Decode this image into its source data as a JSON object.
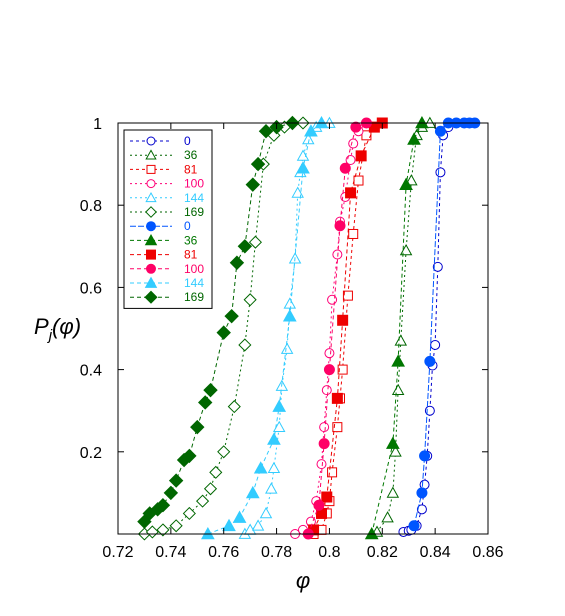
{
  "chart_data": {
    "type": "scatter",
    "title": "",
    "xlabel": "φ",
    "ylabel": {
      "main": "P",
      "sub": "j",
      "rest": "(φ)"
    },
    "xlim": [
      0.72,
      0.86
    ],
    "ylim": [
      0,
      1
    ],
    "xticks": [
      "0.72",
      "0.74",
      "0.76",
      "0.78",
      "0.8",
      "0.82",
      "0.84",
      "0.86"
    ],
    "yticks": [
      {
        "v": 0.2,
        "label": "0.2"
      },
      {
        "v": 0.4,
        "label": "0.4"
      },
      {
        "v": 0.6,
        "label": "0.6"
      },
      {
        "v": 0.8,
        "label": "0.8"
      },
      {
        "v": 1.0,
        "label": "1"
      }
    ],
    "grid": false,
    "legend_position": "top-left",
    "series": [
      {
        "name": "0",
        "color": "#0000cc",
        "marker": "circle",
        "filled": false,
        "dash": "3,3",
        "points": [
          [
            0.828,
            0.005
          ],
          [
            0.83,
            0.008
          ],
          [
            0.831,
            0.01
          ],
          [
            0.833,
            0.02
          ],
          [
            0.835,
            0.06
          ],
          [
            0.836,
            0.12
          ],
          [
            0.837,
            0.19
          ],
          [
            0.838,
            0.3
          ],
          [
            0.839,
            0.41
          ],
          [
            0.84,
            0.46
          ],
          [
            0.841,
            0.65
          ],
          [
            0.842,
            0.88
          ],
          [
            0.843,
            0.97
          ],
          [
            0.845,
            0.99
          ],
          [
            0.848,
            1.0
          ]
        ]
      },
      {
        "name": "36",
        "color": "#006600",
        "marker": "triangle",
        "filled": false,
        "dash": "2,3",
        "points": [
          [
            0.816,
            0.0
          ],
          [
            0.818,
            0.005
          ],
          [
            0.822,
            0.04
          ],
          [
            0.824,
            0.1
          ],
          [
            0.825,
            0.2
          ],
          [
            0.826,
            0.35
          ],
          [
            0.827,
            0.47
          ],
          [
            0.829,
            0.69
          ],
          [
            0.831,
            0.86
          ],
          [
            0.833,
            0.97
          ],
          [
            0.835,
            0.99
          ],
          [
            0.838,
            1.0
          ]
        ]
      },
      {
        "name": "81",
        "color": "#ee0000",
        "marker": "square",
        "filled": false,
        "dash": "3,3",
        "points": [
          [
            0.794,
            0.0
          ],
          [
            0.797,
            0.01
          ],
          [
            0.799,
            0.05
          ],
          [
            0.8,
            0.08
          ],
          [
            0.801,
            0.15
          ],
          [
            0.803,
            0.26
          ],
          [
            0.804,
            0.33
          ],
          [
            0.805,
            0.4
          ],
          [
            0.807,
            0.58
          ],
          [
            0.809,
            0.73
          ],
          [
            0.811,
            0.86
          ],
          [
            0.814,
            0.97
          ],
          [
            0.817,
            0.99
          ],
          [
            0.82,
            1.0
          ]
        ]
      },
      {
        "name": "100",
        "color": "#ff0077",
        "marker": "circle",
        "filled": false,
        "dash": "2,3",
        "points": [
          [
            0.787,
            0.0
          ],
          [
            0.79,
            0.01
          ],
          [
            0.793,
            0.03
          ],
          [
            0.795,
            0.08
          ],
          [
            0.797,
            0.17
          ],
          [
            0.798,
            0.26
          ],
          [
            0.799,
            0.35
          ],
          [
            0.8,
            0.44
          ],
          [
            0.801,
            0.57
          ],
          [
            0.803,
            0.68
          ],
          [
            0.804,
            0.76
          ],
          [
            0.806,
            0.82
          ],
          [
            0.808,
            0.91
          ],
          [
            0.809,
            0.95
          ],
          [
            0.811,
            0.98
          ],
          [
            0.814,
            1.0
          ]
        ]
      },
      {
        "name": "144",
        "color": "#33ccff",
        "marker": "triangle",
        "filled": false,
        "dash": "2,3",
        "points": [
          [
            0.768,
            0.0
          ],
          [
            0.77,
            0.01
          ],
          [
            0.773,
            0.02
          ],
          [
            0.776,
            0.05
          ],
          [
            0.778,
            0.11
          ],
          [
            0.779,
            0.16
          ],
          [
            0.781,
            0.26
          ],
          [
            0.782,
            0.36
          ],
          [
            0.784,
            0.45
          ],
          [
            0.785,
            0.56
          ],
          [
            0.787,
            0.67
          ],
          [
            0.788,
            0.83
          ],
          [
            0.789,
            0.88
          ],
          [
            0.79,
            0.92
          ],
          [
            0.792,
            0.96
          ],
          [
            0.795,
            0.99
          ],
          [
            0.8,
            1.0
          ]
        ]
      },
      {
        "name": "169",
        "color": "#006600",
        "marker": "diamond",
        "filled": false,
        "dash": "2,3",
        "points": [
          [
            0.73,
            0.0
          ],
          [
            0.733,
            0.005
          ],
          [
            0.737,
            0.01
          ],
          [
            0.742,
            0.02
          ],
          [
            0.747,
            0.05
          ],
          [
            0.752,
            0.08
          ],
          [
            0.755,
            0.11
          ],
          [
            0.757,
            0.15
          ],
          [
            0.76,
            0.2
          ],
          [
            0.764,
            0.31
          ],
          [
            0.768,
            0.46
          ],
          [
            0.77,
            0.57
          ],
          [
            0.772,
            0.71
          ],
          [
            0.775,
            0.9
          ],
          [
            0.779,
            0.97
          ],
          [
            0.783,
            0.99
          ],
          [
            0.79,
            1.0
          ]
        ]
      },
      {
        "name": "0",
        "color": "#0055ff",
        "marker": "circle",
        "filled": true,
        "dash": "6,2",
        "points": [
          [
            0.832,
            0.02
          ],
          [
            0.835,
            0.1
          ],
          [
            0.836,
            0.19
          ],
          [
            0.838,
            0.42
          ],
          [
            0.842,
            0.98
          ],
          [
            0.845,
            1.0
          ],
          [
            0.848,
            1.0
          ],
          [
            0.851,
            1.0
          ],
          [
            0.853,
            1.0
          ],
          [
            0.855,
            1.0
          ]
        ]
      },
      {
        "name": "36",
        "color": "#007700",
        "marker": "triangle",
        "filled": true,
        "dash": "4,3",
        "points": [
          [
            0.816,
            0.0
          ],
          [
            0.824,
            0.22
          ],
          [
            0.826,
            0.42
          ],
          [
            0.829,
            0.85
          ],
          [
            0.832,
            0.96
          ],
          [
            0.835,
            1.0
          ]
        ]
      },
      {
        "name": "81",
        "color": "#ee0000",
        "marker": "square",
        "filled": true,
        "dash": "4,3",
        "points": [
          [
            0.794,
            0.01
          ],
          [
            0.797,
            0.05
          ],
          [
            0.799,
            0.09
          ],
          [
            0.803,
            0.33
          ],
          [
            0.805,
            0.52
          ],
          [
            0.808,
            0.83
          ],
          [
            0.812,
            0.92
          ],
          [
            0.817,
            0.99
          ],
          [
            0.82,
            1.0
          ]
        ]
      },
      {
        "name": "100",
        "color": "#ff0066",
        "marker": "circle",
        "filled": true,
        "dash": "4,3",
        "points": [
          [
            0.792,
            0.0
          ],
          [
            0.796,
            0.07
          ],
          [
            0.798,
            0.22
          ],
          [
            0.8,
            0.4
          ],
          [
            0.804,
            0.75
          ],
          [
            0.806,
            0.89
          ],
          [
            0.81,
            0.99
          ],
          [
            0.814,
            1.0
          ]
        ]
      },
      {
        "name": "144",
        "color": "#33ccff",
        "marker": "triangle",
        "filled": true,
        "dash": "4,3",
        "points": [
          [
            0.754,
            0.0
          ],
          [
            0.762,
            0.02
          ],
          [
            0.766,
            0.04
          ],
          [
            0.771,
            0.1
          ],
          [
            0.774,
            0.16
          ],
          [
            0.779,
            0.23
          ],
          [
            0.781,
            0.31
          ],
          [
            0.785,
            0.53
          ],
          [
            0.79,
            0.89
          ],
          [
            0.793,
            0.98
          ],
          [
            0.797,
            1.0
          ]
        ]
      },
      {
        "name": "169",
        "color": "#006600",
        "marker": "diamond",
        "filled": true,
        "dash": "4,3",
        "points": [
          [
            0.73,
            0.03
          ],
          [
            0.732,
            0.05
          ],
          [
            0.735,
            0.06
          ],
          [
            0.737,
            0.07
          ],
          [
            0.74,
            0.1
          ],
          [
            0.742,
            0.13
          ],
          [
            0.745,
            0.18
          ],
          [
            0.747,
            0.19
          ],
          [
            0.75,
            0.26
          ],
          [
            0.753,
            0.32
          ],
          [
            0.755,
            0.35
          ],
          [
            0.76,
            0.49
          ],
          [
            0.763,
            0.53
          ],
          [
            0.765,
            0.66
          ],
          [
            0.768,
            0.7
          ],
          [
            0.771,
            0.85
          ],
          [
            0.773,
            0.9
          ],
          [
            0.776,
            0.98
          ],
          [
            0.78,
            0.99
          ],
          [
            0.786,
            1.0
          ]
        ]
      }
    ]
  }
}
